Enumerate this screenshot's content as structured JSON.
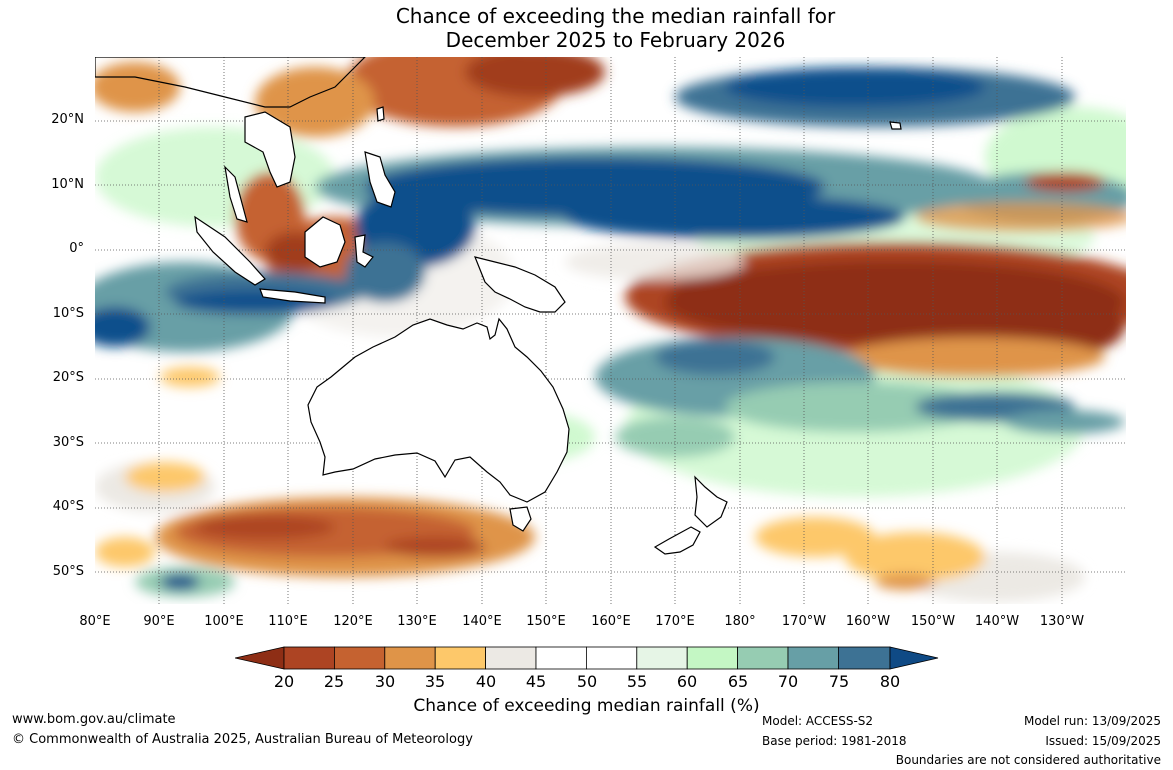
{
  "title": {
    "line1": "Chance of exceeding the median rainfall for",
    "line2": "December 2025 to February 2026"
  },
  "map": {
    "lat_labels": [
      "20°N",
      "10°N",
      "0°",
      "10°S",
      "20°S",
      "30°S",
      "40°S",
      "50°S"
    ],
    "lon_labels": [
      "80°E",
      "90°E",
      "100°E",
      "110°E",
      "120°E",
      "130°E",
      "140°E",
      "150°E",
      "160°E",
      "170°E",
      "180°",
      "170°W",
      "160°W",
      "150°W",
      "140°W",
      "130°W"
    ],
    "lat_range": [
      55,
      -30
    ],
    "lon_range": [
      80,
      240
    ],
    "regions": [
      {
        "name": "southern-indian-ocean-low",
        "category": "25-30",
        "color": "#c5622f"
      },
      {
        "name": "equatorial-pacific-dry-tongue",
        "category": "20-25",
        "color": "#a13c1f"
      },
      {
        "name": "western-pacific-wet-band",
        "category": "75-80",
        "color": "#10508c"
      },
      {
        "name": "south-china-sea-dry",
        "category": "25-30",
        "color": "#b84e24"
      },
      {
        "name": "indian-ocean-wet-band",
        "category": "70-75",
        "color": "#3d7f9f"
      },
      {
        "name": "spcz-wet-band",
        "category": "70-75",
        "color": "#5f9ba6"
      }
    ]
  },
  "colorbar": {
    "ticks": [
      "20",
      "25",
      "30",
      "35",
      "40",
      "45",
      "50",
      "55",
      "60",
      "65",
      "70",
      "75",
      "80"
    ],
    "colors": [
      "#8e2e15",
      "#ad4423",
      "#c56230",
      "#df9448",
      "#fdc86a",
      "#ece9e4",
      "#ffffff",
      "#ffffff",
      "#e6f5e6",
      "#c4f7c4",
      "#96ccb2",
      "#679fa6",
      "#3d7294",
      "#0f4a85"
    ],
    "label": "Chance of exceeding median rainfall (%)"
  },
  "footer": {
    "website": "www.bom.gov.au/climate",
    "copyright": "© Commonwealth of Australia 2025, Australian Bureau of Meteorology",
    "model": "Model: ACCESS-S2",
    "base_period": "Base period: 1981-2018",
    "model_run": "Model run: 13/09/2025",
    "issued": "Issued: 15/09/2025",
    "disclaimer": "Boundaries are not considered authoritative"
  }
}
